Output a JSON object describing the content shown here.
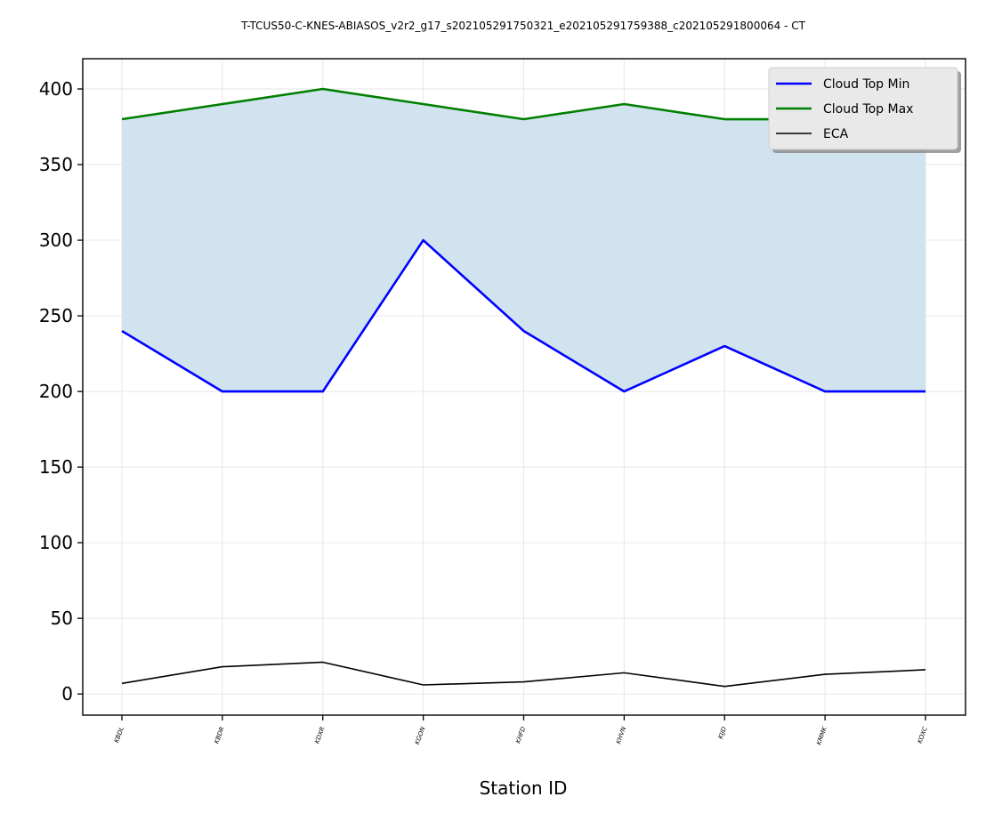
{
  "chart_data": {
    "type": "line",
    "title": "T-TCUS50-C-KNES-ABIASOS_v2r2_g17_s202105291750321_e202105291759388_c202105291800064 - CT",
    "xlabel": "Station ID",
    "ylabel": "",
    "categories": [
      "KBDL",
      "KBDR",
      "KDXR",
      "KGON",
      "KHFD",
      "KHVN",
      "KIJD",
      "KMMK",
      "KOXC"
    ],
    "ylim": [
      -14,
      420
    ],
    "yticks": [
      0,
      50,
      100,
      150,
      200,
      250,
      300,
      350,
      400
    ],
    "grid": true,
    "legend_position": "top-right",
    "fill_between": {
      "lower": "Cloud Top Min",
      "upper": "Cloud Top Max",
      "color": "#d1e3ef"
    },
    "series": [
      {
        "name": "Cloud Top Min",
        "color": "#0000ff",
        "values": [
          240,
          200,
          200,
          300,
          240,
          200,
          230,
          200,
          200
        ]
      },
      {
        "name": "Cloud Top Max",
        "color": "#008000",
        "values": [
          380,
          390,
          400,
          390,
          380,
          390,
          380,
          380,
          400
        ]
      },
      {
        "name": "ECA",
        "color": "#000000",
        "values": [
          7,
          18,
          21,
          6,
          8,
          14,
          5,
          13,
          16
        ]
      }
    ]
  }
}
